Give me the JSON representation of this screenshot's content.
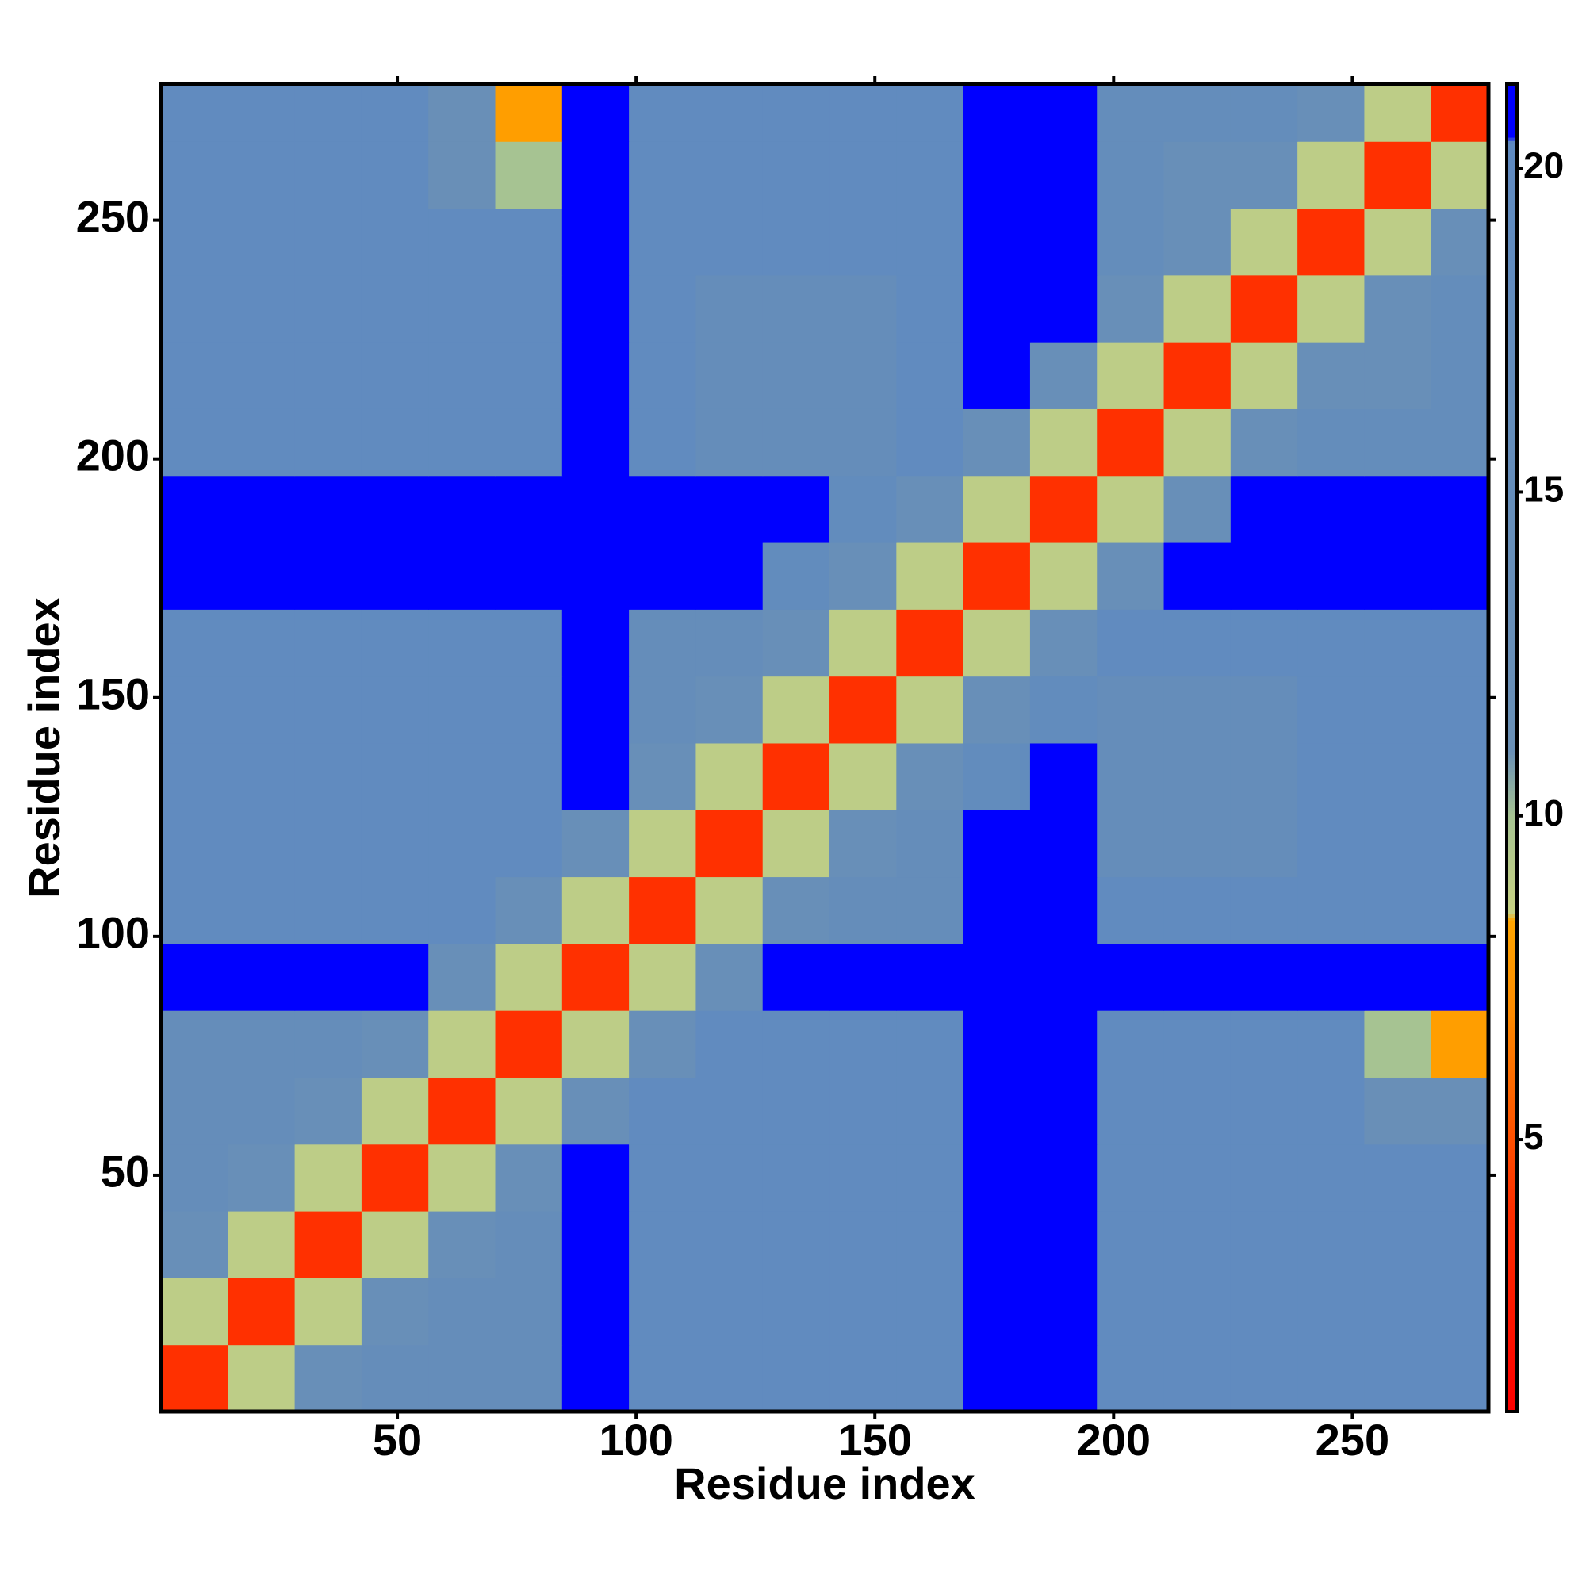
{
  "chart_data": {
    "type": "heatmap",
    "x_label": "Residue index",
    "y_label": "Residue index",
    "xlim": [
      0.5,
      278.5
    ],
    "ylim": [
      0.5,
      278.5
    ],
    "xticks": [
      50,
      100,
      150,
      200,
      250
    ],
    "yticks": [
      50,
      100,
      150,
      200,
      250
    ],
    "x_bins": [
      0.5,
      14.5,
      28.5,
      42.5,
      56.5,
      70.5,
      84.5,
      98.5,
      112.5,
      126.5,
      140.5,
      154.5,
      168.5,
      182.5,
      196.5,
      210.5,
      224.5,
      238.5,
      252.5,
      266.5,
      278.5
    ],
    "y_bins": [
      0.5,
      14.5,
      28.5,
      42.5,
      56.5,
      70.5,
      84.5,
      98.5,
      112.5,
      126.5,
      140.5,
      154.5,
      168.5,
      182.5,
      196.5,
      210.5,
      224.5,
      238.5,
      252.5,
      266.5,
      278.5
    ],
    "values": [
      [
        4,
        9,
        13,
        15,
        15,
        15,
        21,
        19,
        19,
        19,
        19,
        19,
        21,
        21,
        19,
        19,
        19,
        19,
        19,
        19
      ],
      [
        9,
        4,
        9,
        13,
        15,
        15,
        21,
        19,
        19,
        19,
        19,
        19,
        21,
        21,
        19,
        19,
        19,
        19,
        19,
        19
      ],
      [
        13,
        9,
        4,
        9,
        13,
        15,
        21,
        19,
        19,
        19,
        19,
        19,
        21,
        21,
        19,
        19,
        19,
        19,
        19,
        19
      ],
      [
        15,
        13,
        9,
        4,
        9,
        13,
        21,
        19,
        19,
        19,
        19,
        19,
        21,
        21,
        19,
        19,
        19,
        19,
        19,
        19
      ],
      [
        15,
        15,
        13,
        9,
        4,
        9,
        13,
        19,
        19,
        19,
        19,
        19,
        21,
        21,
        19,
        19,
        19,
        19,
        12,
        12
      ],
      [
        15,
        15,
        15,
        13,
        9,
        4,
        9,
        13,
        19,
        19,
        19,
        19,
        21,
        21,
        19,
        19,
        19,
        19,
        10,
        8
      ],
      [
        21,
        21,
        21,
        21,
        13,
        9,
        4,
        9,
        13,
        21,
        21,
        21,
        21,
        21,
        21,
        21,
        21,
        21,
        21,
        21
      ],
      [
        19,
        19,
        19,
        19,
        19,
        13,
        9,
        4,
        9,
        13,
        15,
        15,
        21,
        21,
        19,
        19,
        19,
        19,
        19,
        19
      ],
      [
        19,
        19,
        19,
        19,
        19,
        19,
        13,
        9,
        4,
        9,
        13,
        15,
        21,
        21,
        15,
        15,
        15,
        19,
        19,
        19
      ],
      [
        19,
        19,
        19,
        19,
        19,
        19,
        21,
        13,
        9,
        4,
        9,
        13,
        18,
        21,
        15,
        15,
        15,
        19,
        19,
        19
      ],
      [
        19,
        19,
        19,
        19,
        19,
        19,
        21,
        15,
        13,
        9,
        4,
        9,
        13,
        18,
        15,
        15,
        15,
        19,
        19,
        19
      ],
      [
        19,
        19,
        19,
        19,
        19,
        19,
        21,
        15,
        15,
        13,
        9,
        4,
        9,
        13,
        19,
        19,
        19,
        19,
        19,
        19
      ],
      [
        21,
        21,
        21,
        21,
        21,
        21,
        21,
        21,
        21,
        18,
        13,
        9,
        4,
        9,
        13,
        21,
        21,
        21,
        21,
        21
      ],
      [
        21,
        21,
        21,
        21,
        21,
        21,
        21,
        21,
        21,
        21,
        18,
        13,
        9,
        4,
        9,
        13,
        21,
        21,
        21,
        21
      ],
      [
        19,
        19,
        19,
        19,
        19,
        19,
        21,
        19,
        15,
        15,
        15,
        19,
        13,
        9,
        4,
        9,
        13,
        16,
        16,
        16
      ],
      [
        19,
        19,
        19,
        19,
        19,
        19,
        21,
        19,
        15,
        15,
        15,
        19,
        21,
        13,
        9,
        4,
        9,
        13,
        13,
        16
      ],
      [
        19,
        19,
        19,
        19,
        19,
        19,
        21,
        19,
        15,
        15,
        15,
        19,
        21,
        21,
        13,
        9,
        4,
        9,
        13,
        16
      ],
      [
        19,
        19,
        19,
        19,
        19,
        19,
        21,
        19,
        19,
        19,
        19,
        19,
        21,
        21,
        16,
        13,
        9,
        4,
        9,
        13
      ],
      [
        19,
        19,
        19,
        19,
        12,
        10,
        21,
        19,
        19,
        19,
        19,
        19,
        21,
        21,
        16,
        13,
        13,
        9,
        4,
        9
      ],
      [
        19,
        19,
        19,
        19,
        12,
        8,
        21,
        19,
        19,
        19,
        19,
        19,
        21,
        21,
        16,
        16,
        16,
        13,
        9,
        4
      ]
    ],
    "clim": [
      0.8,
      21.3
    ],
    "colorbar_ticks": [
      5,
      10,
      15,
      20
    ],
    "colorscale": [
      [
        0.8,
        "#ff0000"
      ],
      [
        4,
        "#ff3000"
      ],
      [
        7,
        "#ff8c00"
      ],
      [
        8.4,
        "#ffa500"
      ],
      [
        8.5,
        "#c8d282"
      ],
      [
        10,
        "#a6c392"
      ],
      [
        11,
        "#6a90b6"
      ],
      [
        20.4,
        "#5f8ac0"
      ],
      [
        20.5,
        "#0000ff"
      ],
      [
        21.3,
        "#0000ff"
      ]
    ]
  }
}
